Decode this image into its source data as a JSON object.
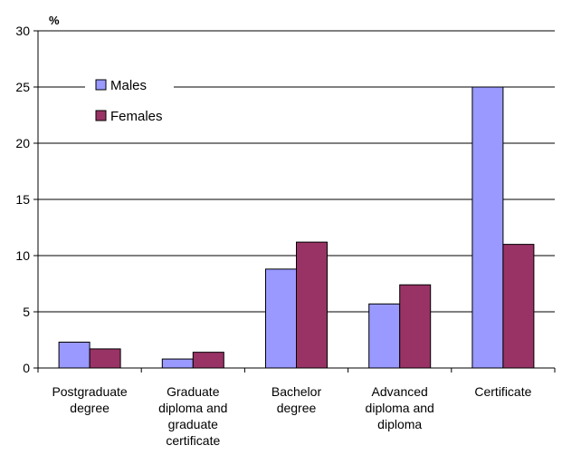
{
  "chart_data": {
    "type": "bar",
    "title": "",
    "xlabel": "",
    "ylabel": "%",
    "ylim": [
      0,
      30
    ],
    "yticks": [
      "0",
      "5",
      "10",
      "15",
      "20",
      "25",
      "30"
    ],
    "grid": true,
    "legend_position": "top-left",
    "categories": [
      "Postgraduate degree",
      "Graduate diploma and graduate certificate",
      "Bachelor degree",
      "Advanced diploma and diploma",
      "Certificate"
    ],
    "category_label_lines": [
      [
        "Postgraduate",
        "degree"
      ],
      [
        "Graduate",
        "diploma and",
        "graduate",
        "certificate"
      ],
      [
        "Bachelor",
        "degree"
      ],
      [
        "Advanced",
        "diploma and",
        "diploma"
      ],
      [
        "Certificate"
      ]
    ],
    "series": [
      {
        "name": "Males",
        "color": "#9999ff",
        "values": [
          2.3,
          0.8,
          8.8,
          5.7,
          25.0
        ]
      },
      {
        "name": "Females",
        "color": "#993366",
        "values": [
          1.7,
          1.4,
          11.2,
          7.4,
          11.0
        ]
      }
    ]
  }
}
